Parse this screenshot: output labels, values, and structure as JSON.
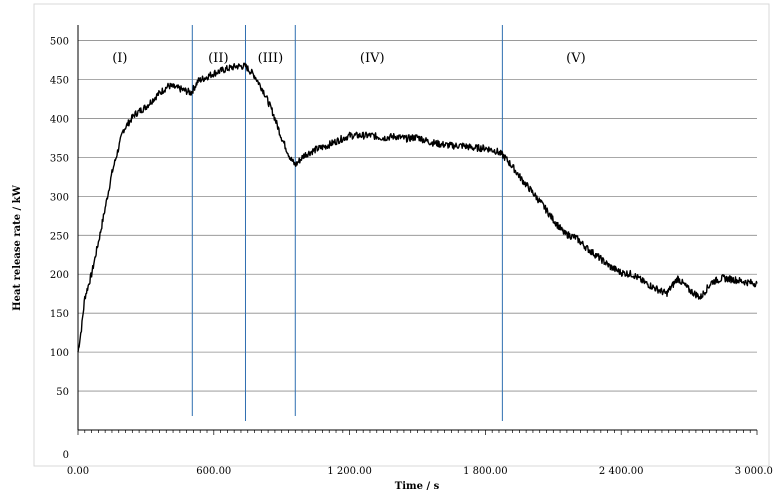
{
  "chart_data": {
    "type": "line",
    "xlabel": "Time  /  s",
    "ylabel": "Heat release rate  /  kW",
    "xlim": [
      0,
      3000
    ],
    "ylim": [
      0,
      520
    ],
    "x_ticks": [
      0,
      600,
      1200,
      1800,
      2400,
      3000
    ],
    "x_tick_labels": [
      "0.00",
      "600.00",
      "1 200.00",
      "1 800.00",
      "2 400.00",
      "3 000.00"
    ],
    "y_ticks": [
      0,
      50,
      100,
      150,
      200,
      250,
      300,
      350,
      400,
      450,
      500
    ],
    "y_tick_labels": [
      "0",
      "50",
      "100",
      "150",
      "200",
      "250",
      "300",
      "350",
      "400",
      "450",
      "500"
    ],
    "grid": "horizontal",
    "phase_boundaries": [
      505,
      740,
      960,
      1875
    ],
    "phases": [
      {
        "label": "(I)",
        "x": 185
      },
      {
        "label": "(II)",
        "x": 620
      },
      {
        "label": "(III)",
        "x": 850
      },
      {
        "label": "(IV)",
        "x": 1300
      },
      {
        "label": "(V)",
        "x": 2200
      }
    ],
    "series": [
      {
        "color": "#000000",
        "x": [
          0,
          15,
          30,
          60,
          100,
          150,
          200,
          250,
          300,
          350,
          400,
          450,
          500,
          530,
          560,
          600,
          650,
          700,
          740,
          780,
          820,
          860,
          900,
          940,
          960,
          1000,
          1050,
          1100,
          1150,
          1200,
          1250,
          1300,
          1350,
          1400,
          1450,
          1500,
          1550,
          1600,
          1650,
          1700,
          1750,
          1800,
          1850,
          1880,
          1920,
          1960,
          2000,
          2050,
          2100,
          2150,
          2200,
          2250,
          2300,
          2350,
          2400,
          2450,
          2500,
          2550,
          2600,
          2650,
          2700,
          2750,
          2800,
          2850,
          2900,
          2950,
          3000
        ],
        "values": [
          100,
          130,
          170,
          200,
          255,
          330,
          385,
          405,
          415,
          430,
          442,
          438,
          433,
          448,
          452,
          458,
          463,
          467,
          467,
          455,
          435,
          408,
          375,
          348,
          340,
          353,
          360,
          365,
          372,
          378,
          378,
          378,
          375,
          377,
          374,
          376,
          370,
          367,
          365,
          365,
          362,
          362,
          358,
          352,
          338,
          322,
          308,
          290,
          270,
          252,
          247,
          233,
          222,
          210,
          202,
          200,
          190,
          182,
          175,
          195,
          180,
          170,
          190,
          195,
          193,
          190,
          188
        ]
      }
    ]
  }
}
